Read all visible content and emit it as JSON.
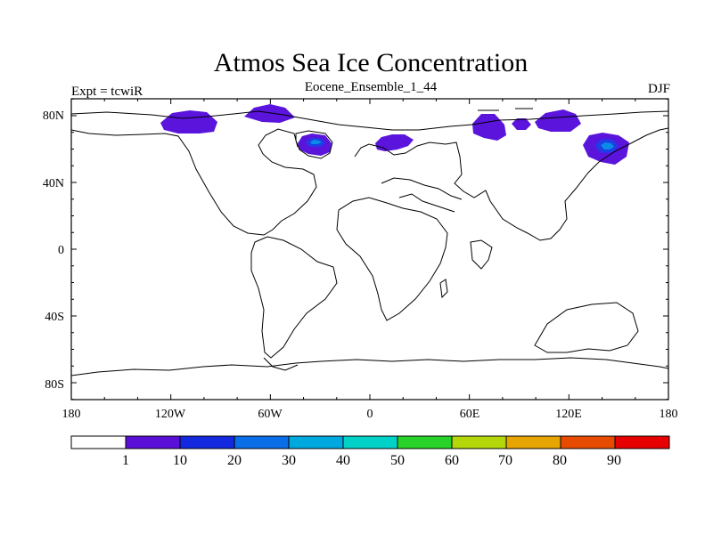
{
  "title": "Atmos Sea Ice Concentration",
  "left_label": "Expt = tcwiR",
  "center_label": "Eocene_Ensemble_1_44",
  "right_label": "DJF",
  "lat_ticks": [
    "80N",
    "40N",
    "0",
    "40S",
    "80S"
  ],
  "lon_ticks": [
    "180",
    "120W",
    "60W",
    "0",
    "60E",
    "120E",
    "180"
  ],
  "colorbar": {
    "labels": [
      "1",
      "10",
      "20",
      "30",
      "40",
      "50",
      "60",
      "70",
      "80",
      "90"
    ],
    "colors": [
      "#ffffff",
      "#5a0fd8",
      "#1428e0",
      "#0a6ee6",
      "#00a8e0",
      "#00d2c8",
      "#28d228",
      "#b4d70a",
      "#e6a500",
      "#e64b00",
      "#e60000"
    ]
  },
  "ice_colors": {
    "low": "#5a14dc",
    "mid": "#1f3ce6",
    "high": "#0a8be6"
  }
}
